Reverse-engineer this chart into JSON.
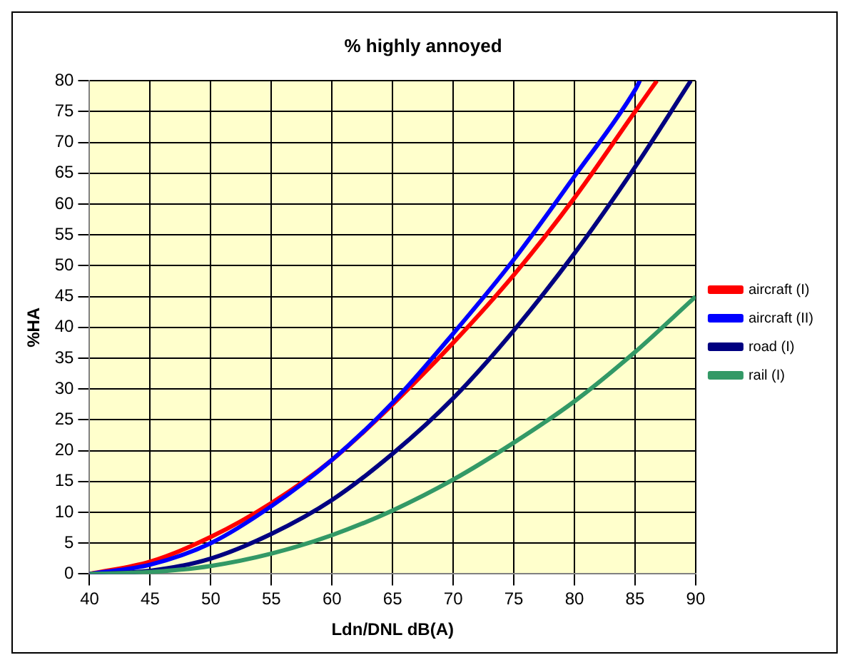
{
  "chart_data": {
    "type": "line",
    "title": "% highly annoyed",
    "xlabel": "Ldn/DNL dB(A)",
    "ylabel": "%HA",
    "xlim": [
      40,
      90
    ],
    "xticks": [
      40,
      45,
      50,
      55,
      60,
      65,
      70,
      75,
      80,
      85,
      90
    ],
    "ylim": [
      0,
      80
    ],
    "yticks": [
      0,
      5,
      10,
      15,
      20,
      25,
      30,
      35,
      40,
      45,
      50,
      55,
      60,
      65,
      70,
      75,
      80
    ],
    "grid": true,
    "legend": "right",
    "marker": "none",
    "line_style": "solid",
    "series": [
      {
        "name": "aircraft (I)",
        "color": "#ff0000",
        "x": [
          40,
          45,
          50,
          55,
          60,
          65,
          70,
          75,
          80,
          85,
          86.8
        ],
        "values": [
          0,
          2,
          6,
          11.5,
          18.5,
          27.5,
          37.5,
          48.5,
          61,
          75,
          80
        ]
      },
      {
        "name": "aircraft (II)",
        "color": "#0000ff",
        "x": [
          40,
          45,
          50,
          55,
          60,
          65,
          70,
          75,
          80,
          85,
          85.4
        ],
        "values": [
          0,
          1.5,
          5,
          11,
          18.5,
          27.8,
          39,
          51,
          64.5,
          78.5,
          80
        ]
      },
      {
        "name": "road (I)",
        "color": "#000080",
        "x": [
          40,
          45,
          50,
          55,
          60,
          65,
          70,
          75,
          80,
          85,
          89.6
        ],
        "values": [
          0,
          0.5,
          2.5,
          6.5,
          12,
          19.5,
          28.5,
          39.5,
          52,
          66,
          80
        ]
      },
      {
        "name": "rail (I)",
        "color": "#339966",
        "x": [
          40,
          45,
          50,
          55,
          60,
          65,
          70,
          75,
          80,
          85,
          90
        ],
        "values": [
          0,
          0.3,
          1.3,
          3.3,
          6.3,
          10.3,
          15.3,
          21.3,
          28,
          36,
          45
        ]
      }
    ]
  }
}
